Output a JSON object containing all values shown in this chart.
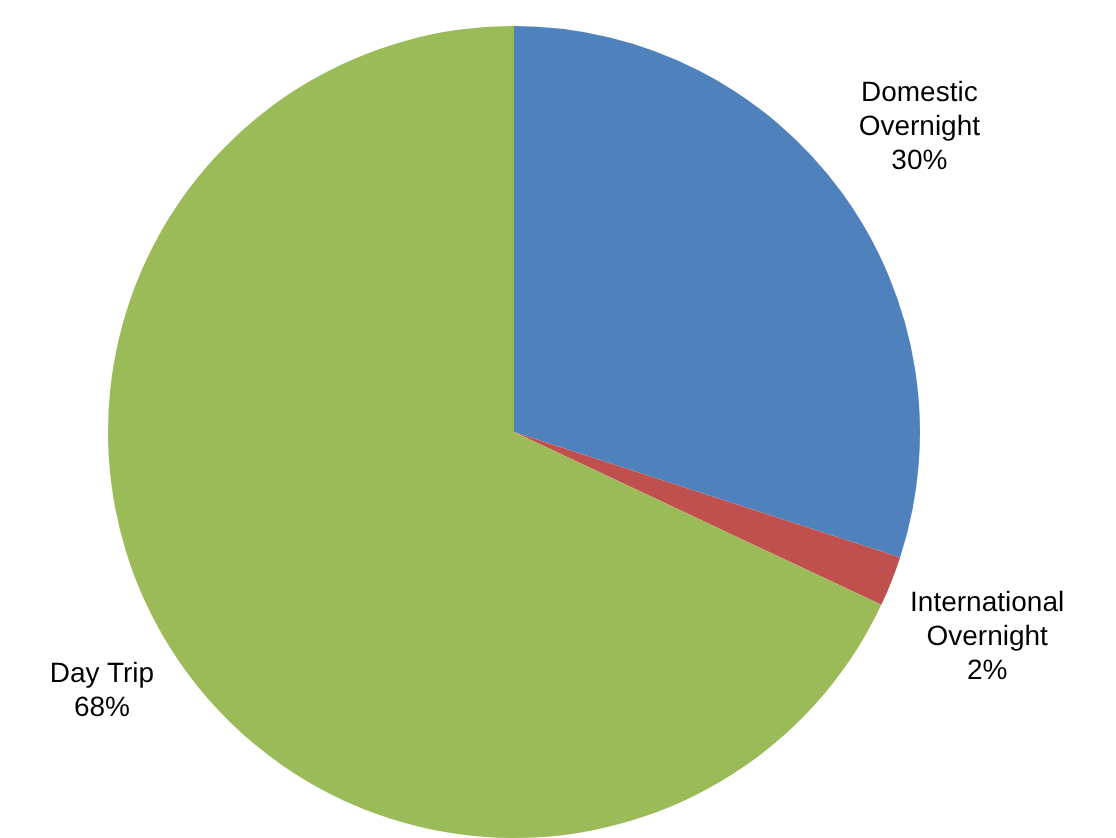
{
  "chart_data": {
    "type": "pie",
    "categories": [
      "Domestic Overnight",
      "International Overnight",
      "Day Trip"
    ],
    "values": [
      30,
      2,
      68
    ],
    "colors": [
      "#4f81bd",
      "#c0504d",
      "#9bbb59"
    ],
    "value_labels": [
      "30%",
      "2%",
      "68%"
    ],
    "legend": false
  }
}
